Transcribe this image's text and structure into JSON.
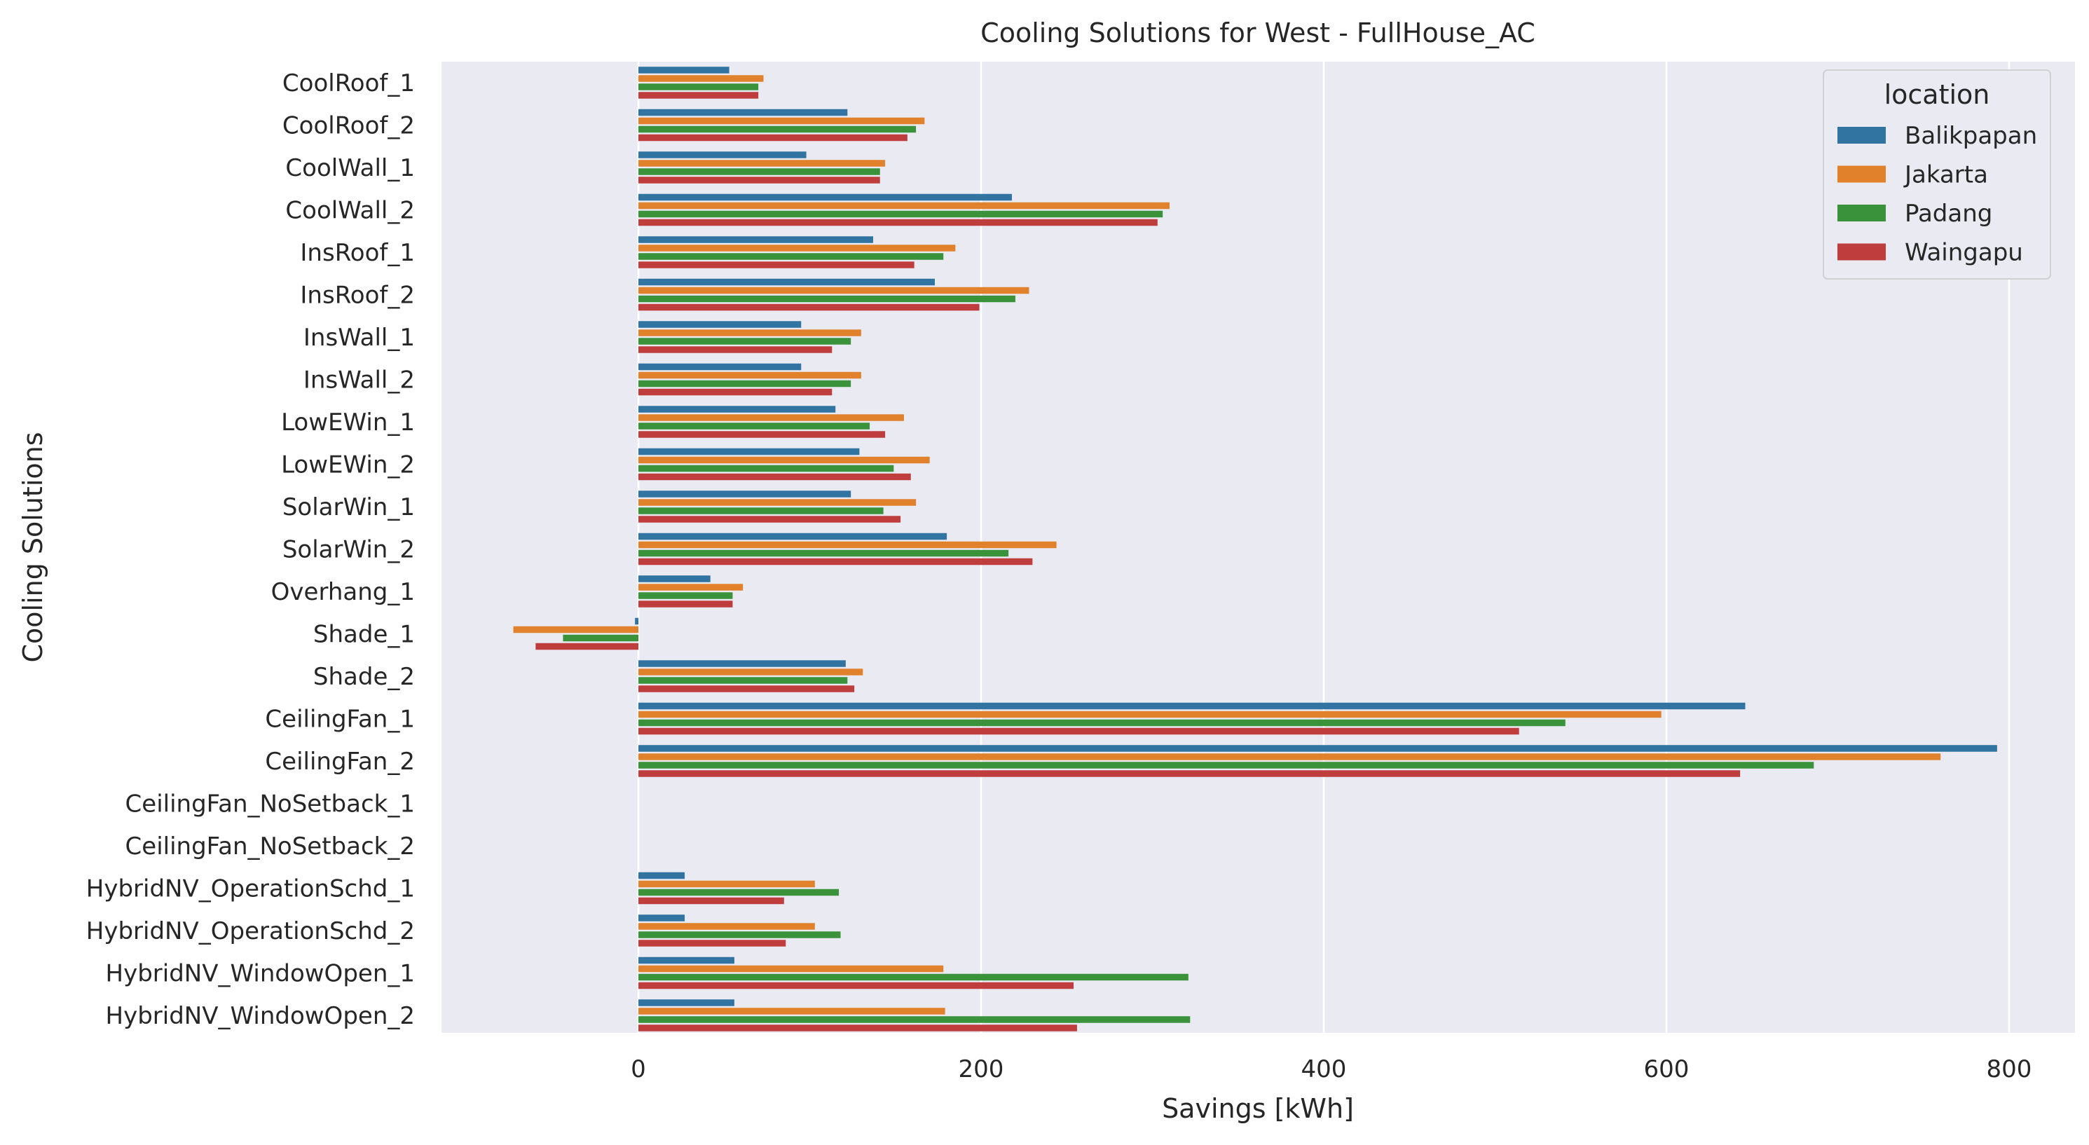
{
  "chart_data": {
    "type": "bar",
    "orientation": "horizontal",
    "title": "Cooling Solutions for West - FullHouse_AC",
    "xlabel": "Savings [kWh]",
    "ylabel": "Cooling Solutions",
    "xlim": [
      -115,
      820
    ],
    "xticks": [
      0,
      200,
      400,
      600,
      800
    ],
    "grid": true,
    "legend": {
      "title": "location",
      "placement": "top-right"
    },
    "categories": [
      "CoolRoof_1",
      "CoolRoof_2",
      "CoolWall_1",
      "CoolWall_2",
      "InsRoof_1",
      "InsRoof_2",
      "InsWall_1",
      "InsWall_2",
      "LowEWin_1",
      "LowEWin_2",
      "SolarWin_1",
      "SolarWin_2",
      "Overhang_1",
      "Shade_1",
      "Shade_2",
      "CeilingFan_1",
      "CeilingFan_2",
      "CeilingFan_NoSetback_1",
      "CeilingFan_NoSetback_2",
      "HybridNV_OperationSchd_1",
      "HybridNV_OperationSchd_2",
      "HybridNV_WindowOpen_1",
      "HybridNV_WindowOpen_2"
    ],
    "series": [
      {
        "name": "Balikpapan",
        "color": "#3274a1",
        "values": [
          53,
          122,
          98,
          218,
          137,
          173,
          95,
          95,
          115,
          129,
          124,
          180,
          42,
          -2,
          121,
          646,
          793,
          0,
          0,
          27,
          27,
          56,
          56
        ]
      },
      {
        "name": "Jakarta",
        "color": "#e1812c",
        "values": [
          73,
          167,
          144,
          310,
          185,
          228,
          130,
          130,
          155,
          170,
          162,
          244,
          61,
          -73,
          131,
          597,
          760,
          0,
          0,
          103,
          103,
          178,
          179
        ]
      },
      {
        "name": "Padang",
        "color": "#3a923a",
        "values": [
          70,
          162,
          141,
          306,
          178,
          220,
          124,
          124,
          135,
          149,
          143,
          216,
          55,
          -44,
          122,
          541,
          686,
          0,
          0,
          117,
          118,
          321,
          322
        ]
      },
      {
        "name": "Waingapu",
        "color": "#c03d3e",
        "values": [
          70,
          157,
          141,
          303,
          161,
          199,
          113,
          113,
          144,
          159,
          153,
          230,
          55,
          -60,
          126,
          514,
          643,
          0,
          0,
          85,
          86,
          254,
          256
        ]
      }
    ]
  }
}
